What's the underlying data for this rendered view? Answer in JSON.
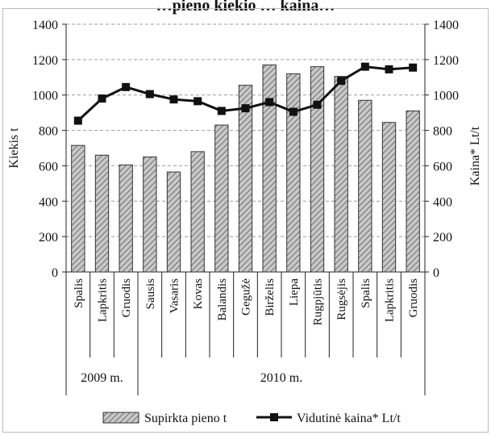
{
  "title": "…pieno kiekio … kaina…",
  "chart_data": {
    "type": "bar",
    "categories": [
      "Spalis",
      "Lapkritis",
      "Gruodis",
      "Sausis",
      "Vasaris",
      "Kovas",
      "Balandis",
      "Gegužė",
      "Birželis",
      "Liepa",
      "Rugpjūtis",
      "Rugsėjis",
      "Spalis",
      "Lapkritis",
      "Gruodis"
    ],
    "groups": [
      {
        "label": "2009 m.",
        "count": 3
      },
      {
        "label": "2010 m.",
        "count": 12
      }
    ],
    "series": [
      {
        "name": "Supirkta pieno t",
        "kind": "bar",
        "axis": "left",
        "color": "#9a9a9a",
        "values": [
          715,
          660,
          605,
          650,
          565,
          680,
          830,
          1055,
          1170,
          1120,
          1160,
          1105,
          970,
          845,
          910
        ]
      },
      {
        "name": "Vidutinė kaina* Lt/t",
        "kind": "line",
        "axis": "right",
        "color": "#1a1a1a",
        "values": [
          855,
          980,
          1045,
          1005,
          975,
          965,
          910,
          925,
          960,
          905,
          945,
          1080,
          1160,
          1145,
          1155
        ]
      }
    ],
    "ylabel_left": "Kiekis t",
    "ylabel_right": "Kaina* Lt/t",
    "ylim_left": [
      0,
      1400
    ],
    "ylim_right": [
      0,
      1400
    ],
    "yticks": [
      "0",
      "200",
      "400",
      "600",
      "800",
      "1000",
      "1200",
      "1400"
    ],
    "grid": "horizontal dashed",
    "legend_position": "bottom"
  }
}
